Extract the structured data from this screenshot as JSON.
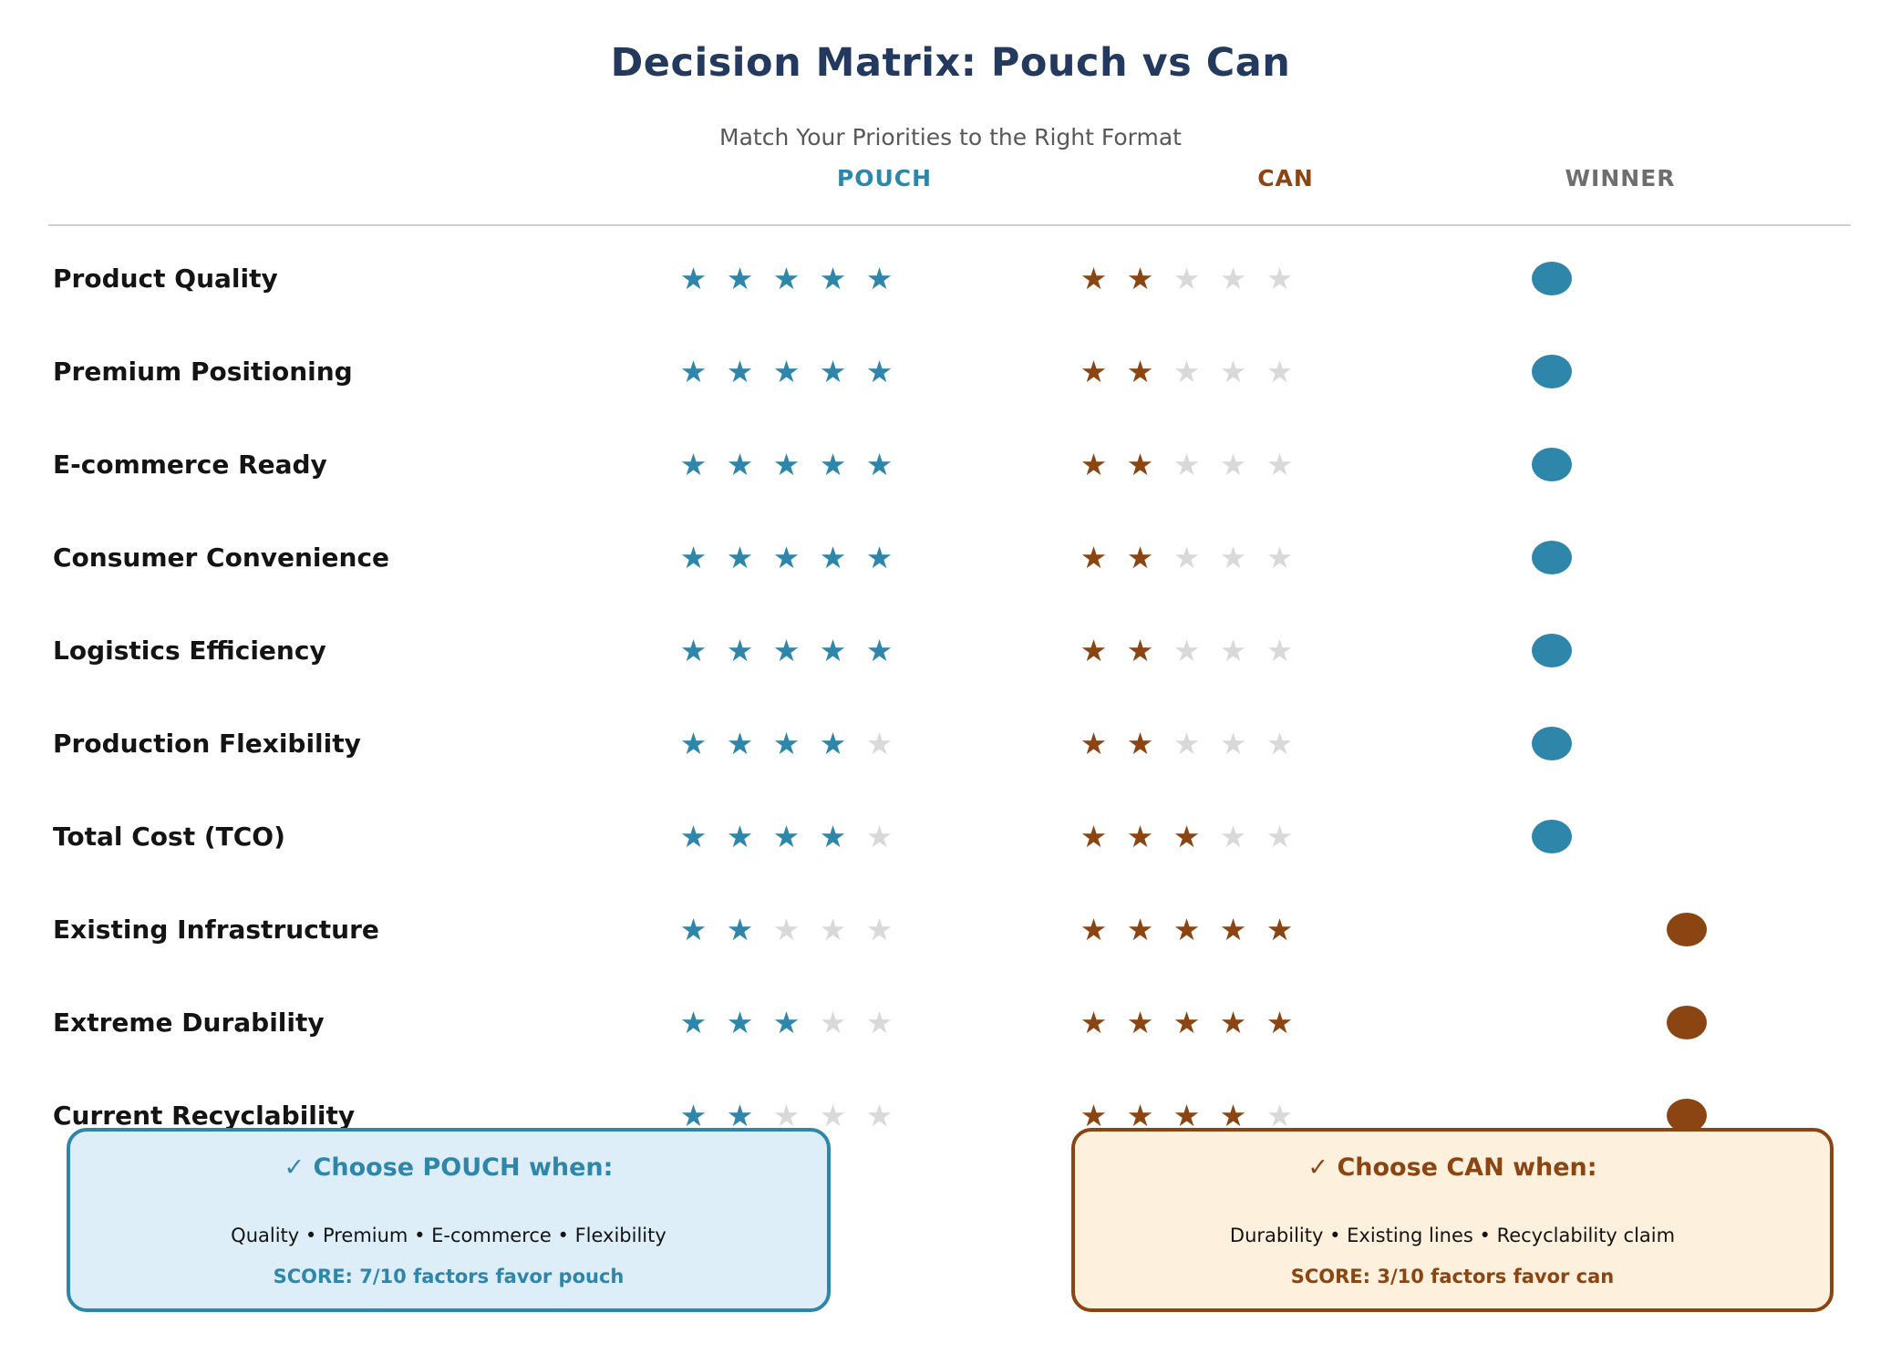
{
  "title": "Decision Matrix: Pouch vs Can",
  "subtitle": "Match Your Priorities to the Right Format",
  "columns": {
    "pouch_label": "POUCH",
    "can_label": "CAN",
    "winner_label": "WINNER"
  },
  "icons": {
    "star": "★",
    "winner_dot": "filled-circle"
  },
  "colors": {
    "title_navy": "#23395d",
    "pouch_accent": "#2e86ab",
    "can_accent": "#8b4513",
    "winner_gray": "#6e6e6e",
    "star_empty": "#d9d9d9",
    "pouch_box_bg": "#ddeef9",
    "can_box_bg": "#fdf0dd"
  },
  "max_stars": 5,
  "rows": [
    {
      "label": "Product Quality",
      "pouch": 5,
      "can": 2,
      "winner": "pouch"
    },
    {
      "label": "Premium Positioning",
      "pouch": 5,
      "can": 2,
      "winner": "pouch"
    },
    {
      "label": "E-commerce Ready",
      "pouch": 5,
      "can": 2,
      "winner": "pouch"
    },
    {
      "label": "Consumer Convenience",
      "pouch": 5,
      "can": 2,
      "winner": "pouch"
    },
    {
      "label": "Logistics Efficiency",
      "pouch": 5,
      "can": 2,
      "winner": "pouch"
    },
    {
      "label": "Production Flexibility",
      "pouch": 4,
      "can": 2,
      "winner": "pouch"
    },
    {
      "label": "Total Cost (TCO)",
      "pouch": 4,
      "can": 3,
      "winner": "pouch"
    },
    {
      "label": "Existing Infrastructure",
      "pouch": 2,
      "can": 5,
      "winner": "can"
    },
    {
      "label": "Extreme Durability",
      "pouch": 3,
      "can": 5,
      "winner": "can"
    },
    {
      "label": "Current Recyclability",
      "pouch": 2,
      "can": 4,
      "winner": "can"
    }
  ],
  "callouts": {
    "pouch": {
      "title": "✓ Choose POUCH when:",
      "body": "Quality • Premium • E-commerce • Flexibility",
      "score": "SCORE: 7/10 factors favor pouch"
    },
    "can": {
      "title": "✓ Choose CAN when:",
      "body": "Durability • Existing lines • Recyclability claim",
      "score": "SCORE: 3/10 factors favor can"
    }
  },
  "chart_data": {
    "type": "table",
    "title": "Decision Matrix: Pouch vs Can",
    "subtitle": "Match Your Priorities to the Right Format",
    "categories": [
      "Product Quality",
      "Premium Positioning",
      "E-commerce Ready",
      "Consumer Convenience",
      "Logistics Efficiency",
      "Production Flexibility",
      "Total Cost (TCO)",
      "Existing Infrastructure",
      "Extreme Durability",
      "Current Recyclability"
    ],
    "series": [
      {
        "name": "POUCH",
        "values": [
          5,
          5,
          5,
          5,
          5,
          4,
          4,
          2,
          3,
          2
        ]
      },
      {
        "name": "CAN",
        "values": [
          2,
          2,
          2,
          2,
          2,
          2,
          3,
          5,
          5,
          4
        ]
      }
    ],
    "winner": [
      "pouch",
      "pouch",
      "pouch",
      "pouch",
      "pouch",
      "pouch",
      "pouch",
      "can",
      "can",
      "can"
    ],
    "rating_scale": [
      0,
      5
    ],
    "summary": {
      "pouch_score": "7/10 factors favor pouch",
      "can_score": "3/10 factors favor can"
    }
  }
}
